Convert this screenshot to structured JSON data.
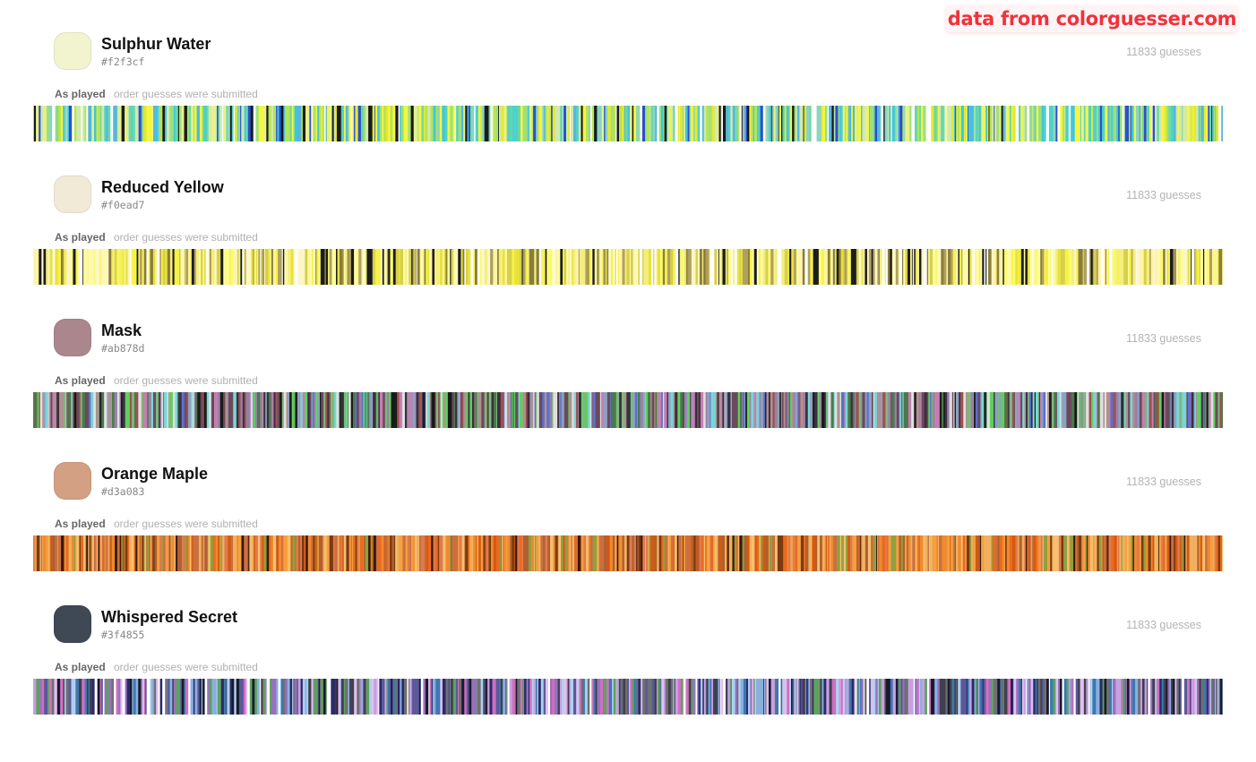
{
  "header": {
    "source_label": "data from colorguesser.com"
  },
  "colors": [
    {
      "name": "Sulphur Water",
      "hex": "#f2f3cf",
      "guesses_label": "11833 guesses",
      "order_label": "As played",
      "order_desc": "order guesses were submitted",
      "guess_palette": [
        "#f5f542",
        "#eaf08a",
        "#b8e356",
        "#4fd1c9",
        "#3ec6e0",
        "#6ad8a8",
        "#9ee07a",
        "#2a4fd0",
        "#1a1a1a",
        "#ffffff",
        "#cfe9b0",
        "#e6e82e",
        "#56b7d9",
        "#8bd4c4"
      ]
    },
    {
      "name": "Reduced Yellow",
      "hex": "#f0ead7",
      "guesses_label": "11833 guesses",
      "order_label": "As played",
      "order_desc": "order guesses were submitted",
      "guess_palette": [
        "#fafa6e",
        "#f7f24a",
        "#fdfca0",
        "#fcf6c8",
        "#e9e23a",
        "#f4ee80",
        "#1c1c1c",
        "#8a7d3a",
        "#ffffff",
        "#fff3a8",
        "#d6d04a",
        "#b0a060"
      ]
    },
    {
      "name": "Mask",
      "hex": "#ab878d",
      "guesses_label": "11833 guesses",
      "order_label": "As played",
      "order_desc": "order guesses were submitted",
      "guess_palette": [
        "#1a1a1a",
        "#3a3040",
        "#9a7fa6",
        "#c47fb2",
        "#7fb87f",
        "#5fd05f",
        "#7ad6d6",
        "#5a6fd0",
        "#a05050",
        "#e0e0e0",
        "#6a4a5a",
        "#b09090",
        "#4a7a4a",
        "#8fa0c0"
      ]
    },
    {
      "name": "Orange Maple",
      "hex": "#d3a083",
      "guesses_label": "11833 guesses",
      "order_label": "As played",
      "order_desc": "order guesses were submitted",
      "guess_palette": [
        "#f08a30",
        "#e86a20",
        "#f4a040",
        "#d45a10",
        "#c87040",
        "#f0b060",
        "#b06030",
        "#7a3a10",
        "#3a1a0a",
        "#f7c070",
        "#e07a50",
        "#8fa040"
      ]
    },
    {
      "name": "Whispered Secret",
      "hex": "#3f4855",
      "guesses_label": "11833 guesses",
      "order_label": "As played",
      "order_desc": "order guesses were submitted",
      "guess_palette": [
        "#1a1a2e",
        "#2a2a6a",
        "#c8a0e0",
        "#e0c0f0",
        "#8ab0e0",
        "#b0d0f0",
        "#5a5a9a",
        "#9a70c0",
        "#60a060",
        "#404050",
        "#ffffff",
        "#d070c0",
        "#3a7ab0",
        "#707070"
      ]
    }
  ]
}
